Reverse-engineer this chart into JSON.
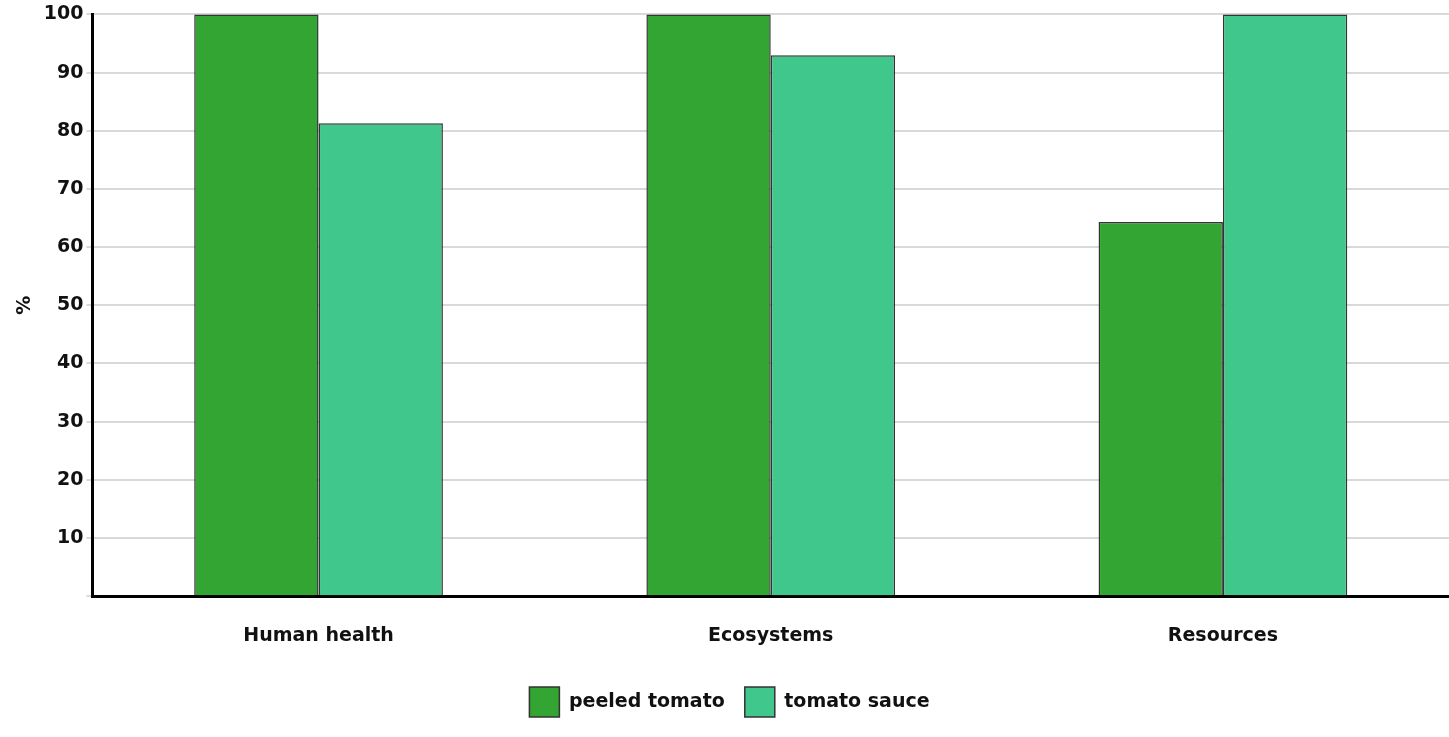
{
  "chart_data": {
    "type": "bar",
    "ylabel": "%",
    "categories": [
      "Human health",
      "Ecosystems",
      "Resources"
    ],
    "series": [
      {
        "name": "peeled tomato",
        "color": "#33a532",
        "values": [
          100,
          100,
          64.3
        ]
      },
      {
        "name": "tomato sauce",
        "color": "#40c78c",
        "values": [
          81.3,
          93,
          100
        ]
      }
    ],
    "ylim": [
      0,
      100
    ],
    "yticks": [
      {
        "value": 0,
        "label": null
      },
      10,
      20,
      30,
      40,
      50,
      60,
      70,
      80,
      90,
      100
    ],
    "grid": "y",
    "legend": "bottom"
  }
}
